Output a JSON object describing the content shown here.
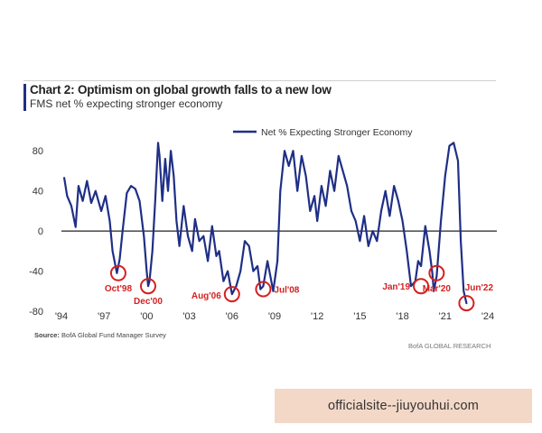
{
  "header": {
    "title": "Chart 2: Optimism on global growth falls to a new low",
    "subtitle": "FMS net % expecting stronger economy"
  },
  "footer": {
    "source_label": "Source:",
    "source_text": "BofA Global Fund Manager Survey",
    "brand": "BofA GLOBAL RESEARCH"
  },
  "watermark": {
    "text": "officialsite--jiuyouhui.com"
  },
  "colors": {
    "series": "#1f2f86",
    "accent": "#1f2f86",
    "annotation": "#d42020",
    "axis": "#222222"
  },
  "chart_data": {
    "type": "line",
    "title": "Chart 2: Optimism on global growth falls to a new low",
    "subtitle": "FMS net % expecting stronger economy",
    "xlabel": "",
    "ylabel": "",
    "xlim": [
      1994.0,
      2024.0
    ],
    "ylim": [
      -80,
      100
    ],
    "x_ticks": [
      1994,
      1997,
      2000,
      2003,
      2006,
      2009,
      2012,
      2015,
      2018,
      2021,
      2024
    ],
    "x_tick_labels": [
      "'94",
      "'97",
      "'00",
      "'03",
      "'06",
      "'09",
      "'12",
      "'15",
      "'18",
      "'21",
      "'24"
    ],
    "y_ticks": [
      -80,
      -40,
      0,
      40,
      80
    ],
    "y_tick_labels": [
      "-80",
      "-40",
      "0",
      "40",
      "80"
    ],
    "grid": false,
    "zero_line": true,
    "legend_position": "top-right",
    "series": [
      {
        "name": "Net % Expecting Stronger Economy",
        "x": [
          1994.2,
          1994.4,
          1994.7,
          1995.0,
          1995.2,
          1995.5,
          1995.8,
          1996.1,
          1996.4,
          1996.8,
          1997.1,
          1997.4,
          1997.6,
          1997.9,
          1998.1,
          1998.3,
          1998.6,
          1998.9,
          1999.2,
          1999.5,
          1999.8,
          2000.0,
          2000.1,
          2000.2,
          2000.4,
          2000.6,
          2000.8,
          2000.9,
          2001.1,
          2001.3,
          2001.5,
          2001.7,
          2001.9,
          2002.1,
          2002.3,
          2002.6,
          2002.9,
          2003.2,
          2003.4,
          2003.7,
          2004.0,
          2004.3,
          2004.6,
          2004.9,
          2005.1,
          2005.4,
          2005.7,
          2006.0,
          2006.3,
          2006.6,
          2006.9,
          2007.2,
          2007.5,
          2007.8,
          2008.0,
          2008.2,
          2008.5,
          2008.7,
          2008.9,
          2009.0,
          2009.2,
          2009.4,
          2009.7,
          2010.0,
          2010.3,
          2010.6,
          2010.9,
          2011.2,
          2011.5,
          2011.8,
          2012.0,
          2012.3,
          2012.6,
          2012.9,
          2013.2,
          2013.5,
          2013.8,
          2014.1,
          2014.4,
          2014.7,
          2015.0,
          2015.3,
          2015.6,
          2015.9,
          2016.2,
          2016.5,
          2016.8,
          2017.1,
          2017.4,
          2017.7,
          2018.0,
          2018.3,
          2018.6,
          2018.9,
          2019.1,
          2019.3,
          2019.6,
          2019.9,
          2020.1,
          2020.2,
          2020.4,
          2020.7,
          2021.0,
          2021.3,
          2021.6,
          2021.9,
          2022.1,
          2022.3,
          2022.5
        ],
        "values": [
          53,
          35,
          25,
          4,
          45,
          30,
          50,
          28,
          40,
          20,
          35,
          10,
          -20,
          -42,
          -28,
          0,
          38,
          45,
          42,
          30,
          -5,
          -40,
          -55,
          -50,
          -20,
          30,
          88,
          75,
          30,
          72,
          40,
          80,
          55,
          10,
          -15,
          25,
          -5,
          -20,
          12,
          -10,
          -5,
          -30,
          5,
          -25,
          -20,
          -50,
          -40,
          -63,
          -55,
          -40,
          -10,
          -15,
          -40,
          -35,
          -58,
          -55,
          -30,
          -45,
          -60,
          -50,
          -30,
          40,
          80,
          65,
          80,
          40,
          75,
          55,
          20,
          35,
          10,
          45,
          25,
          60,
          40,
          75,
          60,
          45,
          20,
          10,
          -10,
          15,
          -15,
          0,
          -10,
          20,
          40,
          15,
          45,
          30,
          10,
          -20,
          -55,
          -50,
          -30,
          -35,
          5,
          -20,
          -42,
          -60,
          -45,
          10,
          55,
          85,
          88,
          70,
          -10,
          -60,
          -72
        ],
        "color": "#1f2f86"
      }
    ],
    "annotations": [
      {
        "label": "Oct'98",
        "x": 1998.0,
        "y": -42
      },
      {
        "label": "Dec'00",
        "x": 2000.1,
        "y": -55
      },
      {
        "label": "Aug'06",
        "x": 2006.0,
        "y": -63
      },
      {
        "label": "Jul'08",
        "x": 2008.2,
        "y": -58
      },
      {
        "label": "Jan'19",
        "x": 2019.3,
        "y": -55
      },
      {
        "label": "Mar'20",
        "x": 2020.4,
        "y": -42
      },
      {
        "label": "Jun'22",
        "x": 2022.5,
        "y": -72
      }
    ]
  }
}
